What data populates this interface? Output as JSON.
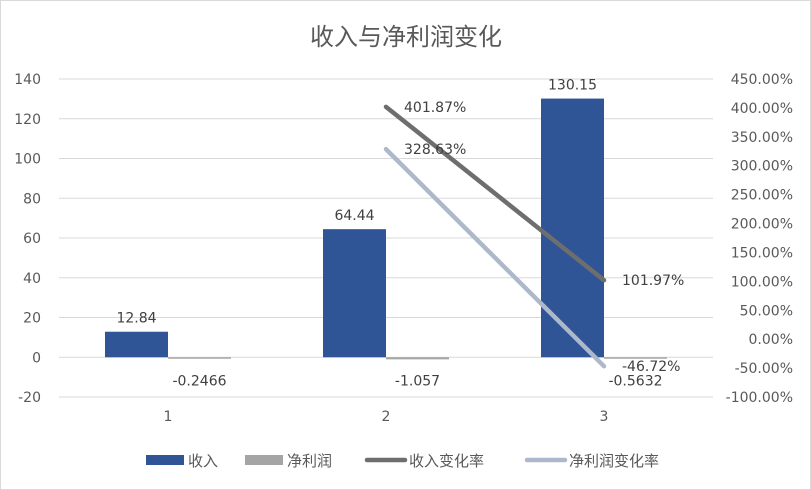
{
  "chart_data": {
    "type": "bar",
    "title": "收入与净利润变化",
    "categories": [
      "1",
      "2",
      "3"
    ],
    "y_left": {
      "ylim": [
        -20,
        140
      ],
      "ticks": [
        -20,
        0,
        20,
        40,
        60,
        80,
        100,
        120,
        140
      ],
      "tick_labels": [
        "-20",
        "0",
        "20",
        "40",
        "60",
        "80",
        "100",
        "120",
        "140"
      ]
    },
    "y_right": {
      "ylim": [
        -100,
        450
      ],
      "ticks": [
        -100,
        -50,
        0,
        50,
        100,
        150,
        200,
        250,
        300,
        350,
        400,
        450
      ],
      "tick_labels": [
        "-100.00%",
        "-50.00%",
        "0.00%",
        "50.00%",
        "100.00%",
        "150.00%",
        "200.00%",
        "250.00%",
        "300.00%",
        "350.00%",
        "400.00%",
        "450.00%"
      ],
      "unit": "percent"
    },
    "series": [
      {
        "name": "收入",
        "type": "bar",
        "axis": "left",
        "color": "#2f5597",
        "values": [
          12.84,
          64.44,
          130.15
        ],
        "labels": [
          "12.84",
          "64.44",
          "130.15"
        ]
      },
      {
        "name": "净利润",
        "type": "bar",
        "axis": "left",
        "color": "#a5a5a5",
        "values": [
          -0.2466,
          -1.057,
          -0.5632
        ],
        "labels": [
          "-0.2466",
          "-1.057",
          "-0.5632"
        ]
      },
      {
        "name": "收入变化率",
        "type": "line",
        "axis": "right",
        "color": "#6e6e6e",
        "values": [
          null,
          401.87,
          101.97
        ],
        "labels": [
          "",
          "401.87%",
          "101.97%"
        ]
      },
      {
        "name": "净利润变化率",
        "type": "line",
        "axis": "right",
        "color": "#adb9ca",
        "values": [
          null,
          328.63,
          -46.72
        ],
        "labels": [
          "",
          "328.63%",
          "-46.72%"
        ]
      }
    ],
    "grid": true,
    "legend": "bottom"
  }
}
